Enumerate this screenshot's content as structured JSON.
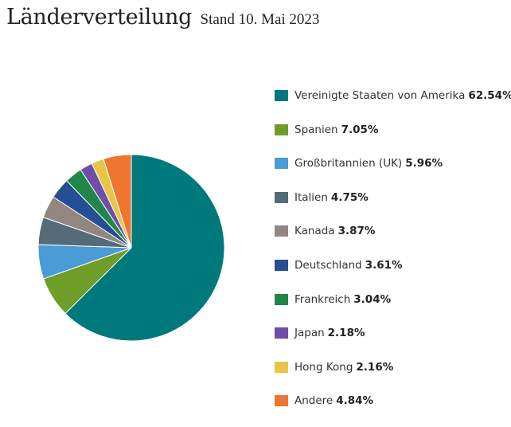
{
  "header": {
    "title": "Länderverteilung",
    "subtitle": "Stand 10. Mai 2023"
  },
  "chart_data": {
    "type": "pie",
    "title": "Länderverteilung",
    "subtitle": "Stand 10. Mai 2023",
    "legend_position": "right",
    "slices": [
      {
        "label": "Vereinigte Staaten von Amerika",
        "value": 62.54,
        "value_label": "62.54%",
        "color": "#00797c"
      },
      {
        "label": "Spanien",
        "value": 7.05,
        "value_label": "7.05%",
        "color": "#6e9e27"
      },
      {
        "label": "Großbritannien (UK)",
        "value": 5.96,
        "value_label": "5.96%",
        "color": "#4a9bd6"
      },
      {
        "label": "Italien",
        "value": 4.75,
        "value_label": "4.75%",
        "color": "#556b78"
      },
      {
        "label": "Kanada",
        "value": 3.87,
        "value_label": "3.87%",
        "color": "#918680"
      },
      {
        "label": "Deutschland",
        "value": 3.61,
        "value_label": "3.61%",
        "color": "#264e94"
      },
      {
        "label": "Frankreich",
        "value": 3.04,
        "value_label": "3.04%",
        "color": "#22864b"
      },
      {
        "label": "Japan",
        "value": 2.18,
        "value_label": "2.18%",
        "color": "#6e4ea9"
      },
      {
        "label": "Hong Kong",
        "value": 2.16,
        "value_label": "2.16%",
        "color": "#e8c548"
      },
      {
        "label": "Andere",
        "value": 4.84,
        "value_label": "4.84%",
        "color": "#ee7630"
      }
    ]
  }
}
